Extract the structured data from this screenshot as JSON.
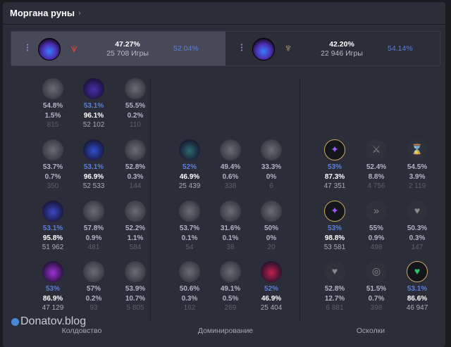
{
  "header": {
    "title": "Моргана руны",
    "chevron": "›"
  },
  "summary": [
    {
      "primary_icon": "precision-path-icon",
      "keystone_icon": "dark-harvest-icon",
      "secondary_icon": "domination-icon",
      "secondary_color": "#d8433a",
      "winrate": "47.27%",
      "games": "25 708 Игры",
      "alt": "52.04%",
      "active": true
    },
    {
      "primary_icon": "precision-path-icon",
      "keystone_icon": "dark-harvest-icon",
      "secondary_icon": "precision-icon",
      "secondary_color": "#c8b078",
      "winrate": "42.20%",
      "games": "22 946 Игры",
      "alt": "54.14%",
      "active": false
    }
  ],
  "colors": {
    "accent": "#5b80d8",
    "background": "#2b2d38"
  },
  "sections": [
    {
      "label": "Колдовство",
      "start_row": 0,
      "rows": [
        [
          {
            "icon": "electrocute-icon",
            "wr": "54.8%",
            "pick": "1.5%",
            "games": "815"
          },
          {
            "icon": "dark-harvest-icon",
            "wr": "53.1%",
            "pick": "96.1%",
            "games": "52 102",
            "selected": true,
            "color": "#4a2fb0"
          },
          {
            "icon": "hail-of-blades-icon",
            "wr": "55.5%",
            "pick": "0.2%",
            "games": "110"
          }
        ],
        [
          {
            "icon": "cheap-shot-icon",
            "wr": "53.7%",
            "pick": "0.7%",
            "games": "350"
          },
          {
            "icon": "manaflow-band-icon",
            "wr": "53.1%",
            "pick": "96.9%",
            "games": "52 533",
            "selected": true,
            "color": "#2f4fd0"
          },
          {
            "icon": "sudden-impact-icon",
            "wr": "52.8%",
            "pick": "0.3%",
            "games": "144"
          }
        ],
        [
          {
            "icon": "transcendence-icon",
            "wr": "53.1%",
            "pick": "95.8%",
            "games": "51 962",
            "selected": true,
            "color": "#3a48c8"
          },
          {
            "icon": "eyeball-collection-icon",
            "wr": "57.8%",
            "pick": "0.9%",
            "games": "481"
          },
          {
            "icon": "zombie-ward-icon",
            "wr": "52.2%",
            "pick": "1.1%",
            "games": "584"
          }
        ],
        [
          {
            "icon": "scorch-icon",
            "wr": "53%",
            "pick": "86.9%",
            "games": "47 129",
            "selected": true,
            "color": "#a22fd8"
          },
          {
            "icon": "waterwalking-icon",
            "wr": "57%",
            "pick": "0.2%",
            "games": "93"
          },
          {
            "icon": "gathering-storm-icon",
            "wr": "53.9%",
            "pick": "10.7%",
            "games": "5 805"
          }
        ]
      ]
    },
    {
      "label": "Доминирование",
      "start_row": 1,
      "rows": [
        [
          {
            "icon": "taste-of-blood-icon",
            "wr": "52%",
            "pick": "46.9%",
            "games": "25 439",
            "selected": true,
            "color": "#2f6a70"
          },
          {
            "icon": "sudden-impact-icon",
            "wr": "49.4%",
            "pick": "0.6%",
            "games": "338"
          },
          {
            "icon": "cheap-shot-icon",
            "wr": "33.3%",
            "pick": "0%",
            "games": "6"
          }
        ],
        [
          {
            "icon": "zombie-ward-icon",
            "wr": "53.7%",
            "pick": "0.1%",
            "games": "54"
          },
          {
            "icon": "ghost-poro-icon",
            "wr": "31.6%",
            "pick": "0.1%",
            "games": "38"
          },
          {
            "icon": "eyeball-collection-icon",
            "wr": "50%",
            "pick": "0%",
            "games": "20"
          }
        ],
        [
          {
            "icon": "treasure-hunter-icon",
            "wr": "50.6%",
            "pick": "0.3%",
            "games": "162"
          },
          {
            "icon": "relentless-hunter-icon",
            "wr": "49.1%",
            "pick": "0.5%",
            "games": "269"
          },
          {
            "icon": "ultimate-hunter-icon",
            "wr": "52%",
            "pick": "46.9%",
            "games": "25 404",
            "selected": true,
            "color": "#c0204a"
          }
        ]
      ]
    },
    {
      "label": "Осколки",
      "start_row": 1,
      "rows": [
        [
          {
            "icon": "adaptive-force-shard-icon",
            "shard": true,
            "wr": "53%",
            "pick": "87.3%",
            "games": "47 351",
            "selected": true,
            "color": "#9a5cff"
          },
          {
            "icon": "attack-speed-shard-icon",
            "shard": true,
            "wr": "52.4%",
            "pick": "8.8%",
            "games": "4 756"
          },
          {
            "icon": "ability-haste-shard-icon",
            "shard": true,
            "wr": "54.5%",
            "pick": "3.9%",
            "games": "2 119"
          }
        ],
        [
          {
            "icon": "adaptive-force-shard-icon",
            "shard": true,
            "wr": "53%",
            "pick": "98.8%",
            "games": "53 581",
            "selected": true,
            "color": "#9a5cff"
          },
          {
            "icon": "movement-speed-shard-icon",
            "shard": true,
            "wr": "55%",
            "pick": "0.9%",
            "games": "498"
          },
          {
            "icon": "health-scaling-shard-icon",
            "shard": true,
            "wr": "50.3%",
            "pick": "0.3%",
            "games": "147"
          }
        ],
        [
          {
            "icon": "health-shard-icon",
            "shard": true,
            "wr": "52.8%",
            "pick": "12.7%",
            "games": "6 881"
          },
          {
            "icon": "tenacity-shard-icon",
            "shard": true,
            "wr": "51.5%",
            "pick": "0.7%",
            "games": "398"
          },
          {
            "icon": "health-scaling-shard-icon",
            "shard": true,
            "wr": "53.1%",
            "pick": "86.6%",
            "games": "46 947",
            "selected": true,
            "color": "#2ec46a"
          }
        ]
      ]
    }
  ],
  "watermark": "Donatov.blog"
}
